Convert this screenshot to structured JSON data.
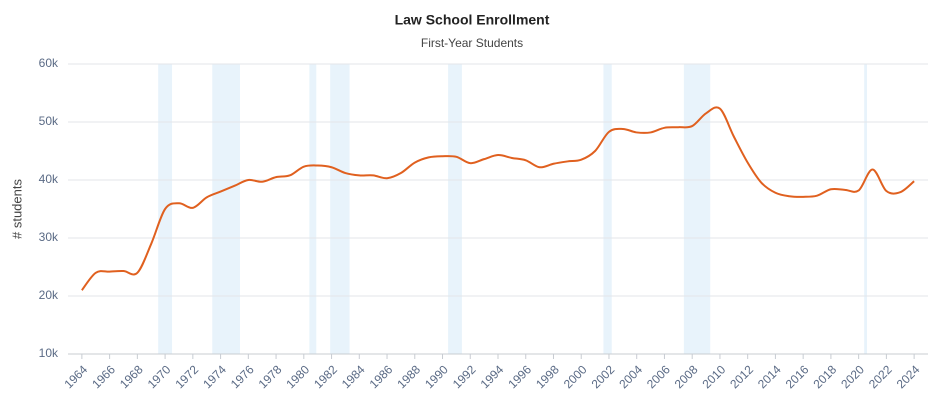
{
  "chart_data": {
    "type": "line",
    "title": "Law School Enrollment",
    "subtitle": "First-Year Students",
    "y_label": "# students",
    "grid": true,
    "x": [
      1964,
      1965,
      1966,
      1967,
      1968,
      1969,
      1970,
      1971,
      1972,
      1973,
      1974,
      1975,
      1976,
      1977,
      1978,
      1979,
      1980,
      1981,
      1982,
      1983,
      1984,
      1985,
      1986,
      1987,
      1988,
      1989,
      1990,
      1991,
      1992,
      1993,
      1994,
      1995,
      1996,
      1997,
      1998,
      1999,
      2000,
      2001,
      2002,
      2003,
      2004,
      2005,
      2006,
      2007,
      2008,
      2009,
      2010,
      2011,
      2012,
      2013,
      2014,
      2015,
      2016,
      2017,
      2018,
      2019,
      2020,
      2021,
      2022,
      2023,
      2024
    ],
    "series": [
      {
        "name": "First-Year Students",
        "color": "#e0601f",
        "values": [
          21000,
          24000,
          24200,
          24300,
          24000,
          29000,
          35000,
          36000,
          35200,
          37000,
          38000,
          39000,
          40000,
          39700,
          40500,
          40800,
          42300,
          42500,
          42200,
          41200,
          40800,
          40800,
          40300,
          41200,
          43000,
          43900,
          44100,
          44000,
          42900,
          43600,
          44300,
          43800,
          43400,
          42200,
          42800,
          43200,
          43500,
          45000,
          48300,
          48800,
          48200,
          48200,
          49000,
          49100,
          49300,
          51500,
          52300,
          47500,
          43000,
          39500,
          37800,
          37200,
          37100,
          37300,
          38400,
          38300,
          38200,
          41800,
          38100,
          37900,
          39800
        ]
      }
    ],
    "recessions": [
      [
        1969.5,
        1970.5
      ],
      [
        1973.4,
        1975.4
      ],
      [
        1980.4,
        1980.9
      ],
      [
        1981.9,
        1983.3
      ],
      [
        1990.4,
        1991.4
      ],
      [
        2001.6,
        2002.2
      ],
      [
        2007.4,
        2009.3
      ],
      [
        2020.4,
        2020.6
      ]
    ],
    "recession_color": "#e8f3fb",
    "xlim": [
      1963,
      2025
    ],
    "xticks": [
      1964,
      1966,
      1968,
      1970,
      1972,
      1974,
      1976,
      1978,
      1980,
      1982,
      1984,
      1986,
      1988,
      1990,
      1992,
      1994,
      1996,
      1998,
      2000,
      2002,
      2004,
      2006,
      2008,
      2010,
      2012,
      2014,
      2016,
      2018,
      2020,
      2022,
      2024
    ],
    "ylim": [
      10000,
      60000
    ],
    "yticks": [
      {
        "value": 10000,
        "label": "10k"
      },
      {
        "value": 20000,
        "label": "20k"
      },
      {
        "value": 30000,
        "label": "30k"
      },
      {
        "value": 40000,
        "label": "40k"
      },
      {
        "value": 50000,
        "label": "50k"
      },
      {
        "value": 60000,
        "label": "60k"
      }
    ]
  }
}
